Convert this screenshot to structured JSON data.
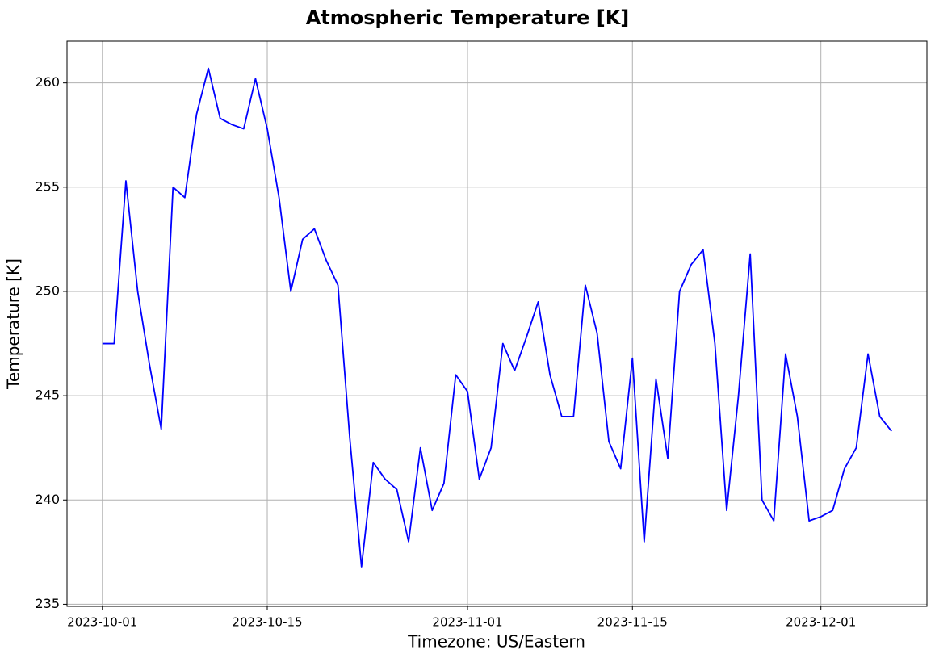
{
  "chart_data": {
    "type": "line",
    "title": "Atmospheric Temperature [K]",
    "x_label": "Timezone: US/Eastern",
    "y_label": "Temperature [K]",
    "x": [
      "2023-10-01",
      "2023-10-02",
      "2023-10-03",
      "2023-10-04",
      "2023-10-05",
      "2023-10-06",
      "2023-10-07",
      "2023-10-08",
      "2023-10-09",
      "2023-10-10",
      "2023-10-11",
      "2023-10-12",
      "2023-10-13",
      "2023-10-14",
      "2023-10-15",
      "2023-10-16",
      "2023-10-17",
      "2023-10-18",
      "2023-10-19",
      "2023-10-20",
      "2023-10-21",
      "2023-10-22",
      "2023-10-23",
      "2023-10-24",
      "2023-10-25",
      "2023-10-26",
      "2023-10-27",
      "2023-10-28",
      "2023-10-29",
      "2023-10-30",
      "2023-10-31",
      "2023-11-01",
      "2023-11-02",
      "2023-11-03",
      "2023-11-04",
      "2023-11-05",
      "2023-11-06",
      "2023-11-07",
      "2023-11-08",
      "2023-11-09",
      "2023-11-10",
      "2023-11-11",
      "2023-11-12",
      "2023-11-13",
      "2023-11-14",
      "2023-11-15",
      "2023-11-16",
      "2023-11-17",
      "2023-11-18",
      "2023-11-19",
      "2023-11-20",
      "2023-11-21",
      "2023-11-22",
      "2023-11-23",
      "2023-11-24",
      "2023-11-25",
      "2023-11-26",
      "2023-11-27",
      "2023-11-28",
      "2023-11-29",
      "2023-11-30",
      "2023-12-01",
      "2023-12-02",
      "2023-12-03",
      "2023-12-04",
      "2023-12-05",
      "2023-12-06",
      "2023-12-07"
    ],
    "series": [
      {
        "name": "Temperature",
        "color": "#0000ff",
        "values": [
          247.5,
          247.5,
          255.3,
          250,
          246.5,
          243.4,
          255,
          254.5,
          258.5,
          260.7,
          258.3,
          258,
          257.8,
          260.2,
          257.8,
          254.5,
          250,
          252.5,
          253,
          251.5,
          250.3,
          243,
          236.8,
          241.8,
          241,
          240.5,
          238,
          242.5,
          239.5,
          240.8,
          246,
          245.2,
          241,
          242.5,
          247.5,
          246.2,
          247.8,
          249.5,
          246,
          244,
          244,
          250.3,
          248,
          242.8,
          241.5,
          246.8,
          238,
          245.8,
          242,
          250,
          251.3,
          252,
          247.5,
          239.5,
          245,
          251.8,
          240,
          239,
          247,
          244,
          239,
          239.2,
          239.5,
          241.5,
          242.5,
          247,
          244,
          243.3
        ]
      }
    ],
    "xlim": [
      "2023-09-28",
      "2023-12-10"
    ],
    "xticks": [
      "2023-10-01",
      "2023-10-15",
      "2023-11-01",
      "2023-11-15",
      "2023-12-01"
    ],
    "ylim": [
      234.9,
      262
    ],
    "yticks": [
      235,
      240,
      245,
      250,
      255,
      260
    ],
    "grid": true
  }
}
